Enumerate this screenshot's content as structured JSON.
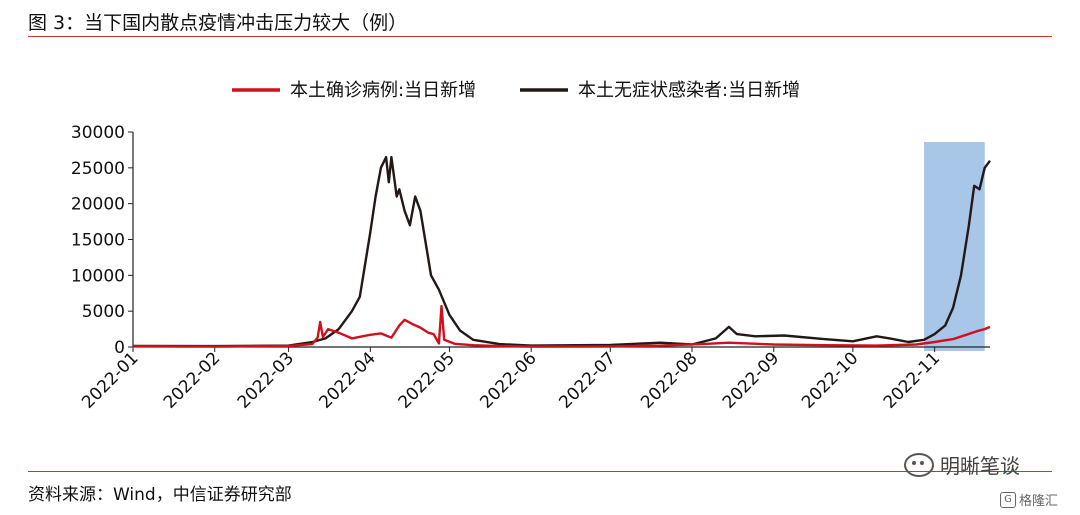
{
  "header": {
    "title": "图 3：当下国内散点疫情冲击压力较大（例）"
  },
  "footer": {
    "source": "资料来源：Wind，中信证券研究部",
    "watermark": "明晰笔谈",
    "logo_text": "格隆汇",
    "logo_glyph": "G"
  },
  "chart_data": {
    "type": "line",
    "title": "",
    "xlabel": "",
    "ylabel": "",
    "ylim": [
      0,
      30000
    ],
    "yticks": [
      0,
      5000,
      10000,
      15000,
      20000,
      25000,
      30000
    ],
    "xlim": [
      "2022-01-01",
      "2022-11-22"
    ],
    "xticks": [
      "2022-01",
      "2022-02",
      "2022-03",
      "2022-04",
      "2022-05",
      "2022-06",
      "2022-07",
      "2022-08",
      "2022-09",
      "2022-10",
      "2022-11"
    ],
    "legend_position": "top",
    "grid": false,
    "highlight": {
      "x_start": "2022-10-28",
      "x_end": "2022-11-20",
      "color": "#a8c7e8"
    },
    "series": [
      {
        "name": "本土确诊病例:当日新增",
        "color": "#d0101e",
        "points": [
          [
            "2022-01-01",
            100
          ],
          [
            "2022-02-01",
            60
          ],
          [
            "2022-03-01",
            150
          ],
          [
            "2022-03-10",
            400
          ],
          [
            "2022-03-12",
            1300
          ],
          [
            "2022-03-13",
            3500
          ],
          [
            "2022-03-14",
            1400
          ],
          [
            "2022-03-16",
            2500
          ],
          [
            "2022-03-20",
            2000
          ],
          [
            "2022-03-25",
            1200
          ],
          [
            "2022-03-29",
            1500
          ],
          [
            "2022-04-01",
            1700
          ],
          [
            "2022-04-05",
            1900
          ],
          [
            "2022-04-09",
            1300
          ],
          [
            "2022-04-12",
            3000
          ],
          [
            "2022-04-14",
            3800
          ],
          [
            "2022-04-17",
            3200
          ],
          [
            "2022-04-20",
            2700
          ],
          [
            "2022-04-23",
            2000
          ],
          [
            "2022-04-25",
            1800
          ],
          [
            "2022-04-27",
            500
          ],
          [
            "2022-04-28",
            5700
          ],
          [
            "2022-04-29",
            1000
          ],
          [
            "2022-05-03",
            450
          ],
          [
            "2022-05-10",
            250
          ],
          [
            "2022-05-20",
            120
          ],
          [
            "2022-06-01",
            60
          ],
          [
            "2022-07-01",
            90
          ],
          [
            "2022-07-20",
            200
          ],
          [
            "2022-08-05",
            400
          ],
          [
            "2022-08-15",
            600
          ],
          [
            "2022-09-01",
            350
          ],
          [
            "2022-09-20",
            250
          ],
          [
            "2022-10-10",
            200
          ],
          [
            "2022-10-25",
            350
          ],
          [
            "2022-11-01",
            700
          ],
          [
            "2022-11-08",
            1100
          ],
          [
            "2022-11-13",
            1700
          ],
          [
            "2022-11-17",
            2200
          ],
          [
            "2022-11-20",
            2500
          ],
          [
            "2022-11-22",
            2800
          ]
        ]
      },
      {
        "name": "本土无症状感染者:当日新增",
        "color": "#231815",
        "points": [
          [
            "2022-01-01",
            150
          ],
          [
            "2022-02-01",
            120
          ],
          [
            "2022-03-01",
            200
          ],
          [
            "2022-03-10",
            700
          ],
          [
            "2022-03-15",
            1200
          ],
          [
            "2022-03-20",
            2500
          ],
          [
            "2022-03-25",
            5000
          ],
          [
            "2022-03-28",
            7000
          ],
          [
            "2022-04-01",
            16000
          ],
          [
            "2022-04-03",
            21000
          ],
          [
            "2022-04-05",
            25000
          ],
          [
            "2022-04-07",
            26500
          ],
          [
            "2022-04-08",
            23000
          ],
          [
            "2022-04-09",
            26500
          ],
          [
            "2022-04-11",
            21000
          ],
          [
            "2022-04-12",
            22000
          ],
          [
            "2022-04-14",
            19000
          ],
          [
            "2022-04-16",
            17000
          ],
          [
            "2022-04-18",
            21000
          ],
          [
            "2022-04-20",
            19000
          ],
          [
            "2022-04-24",
            10000
          ],
          [
            "2022-04-27",
            8000
          ],
          [
            "2022-05-01",
            4500
          ],
          [
            "2022-05-05",
            2300
          ],
          [
            "2022-05-10",
            1000
          ],
          [
            "2022-05-20",
            400
          ],
          [
            "2022-06-01",
            200
          ],
          [
            "2022-07-01",
            300
          ],
          [
            "2022-07-20",
            600
          ],
          [
            "2022-08-01",
            350
          ],
          [
            "2022-08-10",
            1200
          ],
          [
            "2022-08-15",
            2800
          ],
          [
            "2022-08-18",
            1800
          ],
          [
            "2022-08-25",
            1500
          ],
          [
            "2022-09-05",
            1600
          ],
          [
            "2022-09-20",
            1100
          ],
          [
            "2022-10-01",
            800
          ],
          [
            "2022-10-10",
            1500
          ],
          [
            "2022-10-15",
            1200
          ],
          [
            "2022-10-22",
            700
          ],
          [
            "2022-10-28",
            1000
          ],
          [
            "2022-11-01",
            1800
          ],
          [
            "2022-11-05",
            3000
          ],
          [
            "2022-11-08",
            5500
          ],
          [
            "2022-11-11",
            10000
          ],
          [
            "2022-11-14",
            17000
          ],
          [
            "2022-11-16",
            22500
          ],
          [
            "2022-11-18",
            22000
          ],
          [
            "2022-11-20",
            25000
          ],
          [
            "2022-11-22",
            26000
          ]
        ]
      }
    ]
  }
}
